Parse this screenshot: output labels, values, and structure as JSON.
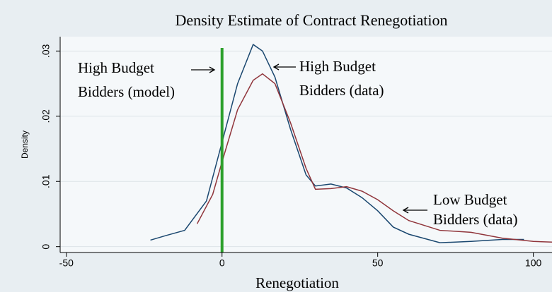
{
  "chart_data": {
    "type": "line",
    "title": "Density Estimate of Contract Renegotiation",
    "x_label": "Renegotiation",
    "y_label": "Density",
    "series": [
      {
        "color": "#1a476f",
        "x": [
          -23,
          -18,
          -12,
          -5,
          0,
          5,
          10,
          13,
          17,
          22,
          27,
          30,
          35,
          40,
          45,
          50,
          55,
          60,
          70,
          80,
          90,
          97
        ],
        "values": [
          0.001,
          0.0017,
          0.0025,
          0.007,
          0.016,
          0.025,
          0.031,
          0.03,
          0.026,
          0.018,
          0.011,
          0.0093,
          0.0096,
          0.009,
          0.0075,
          0.0055,
          0.003,
          0.0019,
          0.0006,
          0.0008,
          0.0011,
          0.0011
        ]
      },
      {
        "color": "#90353b",
        "x": [
          -8,
          -3,
          0,
          5,
          10,
          13,
          17,
          22,
          27,
          30,
          35,
          40,
          45,
          50,
          55,
          60,
          70,
          80,
          90,
          100,
          106
        ],
        "values": [
          0.0035,
          0.008,
          0.013,
          0.021,
          0.0255,
          0.0265,
          0.025,
          0.019,
          0.012,
          0.0088,
          0.0089,
          0.0092,
          0.0085,
          0.0072,
          0.0055,
          0.004,
          0.0025,
          0.0022,
          0.0013,
          0.0008,
          0.0007
        ]
      }
    ],
    "vline": {
      "x": 0,
      "color": "#2ca02c"
    },
    "annotations": [
      {
        "lines": [
          "High Budget",
          "Bidders (model)"
        ]
      },
      {
        "lines": [
          "High Budget",
          "Bidders (data)"
        ]
      },
      {
        "lines": [
          "Low Budget",
          "Bidders (data)"
        ]
      }
    ],
    "xlim": [
      -52,
      106
    ],
    "ylim": [
      -0.0009,
      0.0322
    ],
    "xticks": [
      -50,
      0,
      50,
      100
    ],
    "yticks": [
      0,
      {
        "value": 0.01,
        "label": ".01"
      },
      {
        "value": 0.02,
        "label": ".02"
      },
      {
        "value": 0.03,
        "label": ".03"
      }
    ],
    "grid": true
  }
}
